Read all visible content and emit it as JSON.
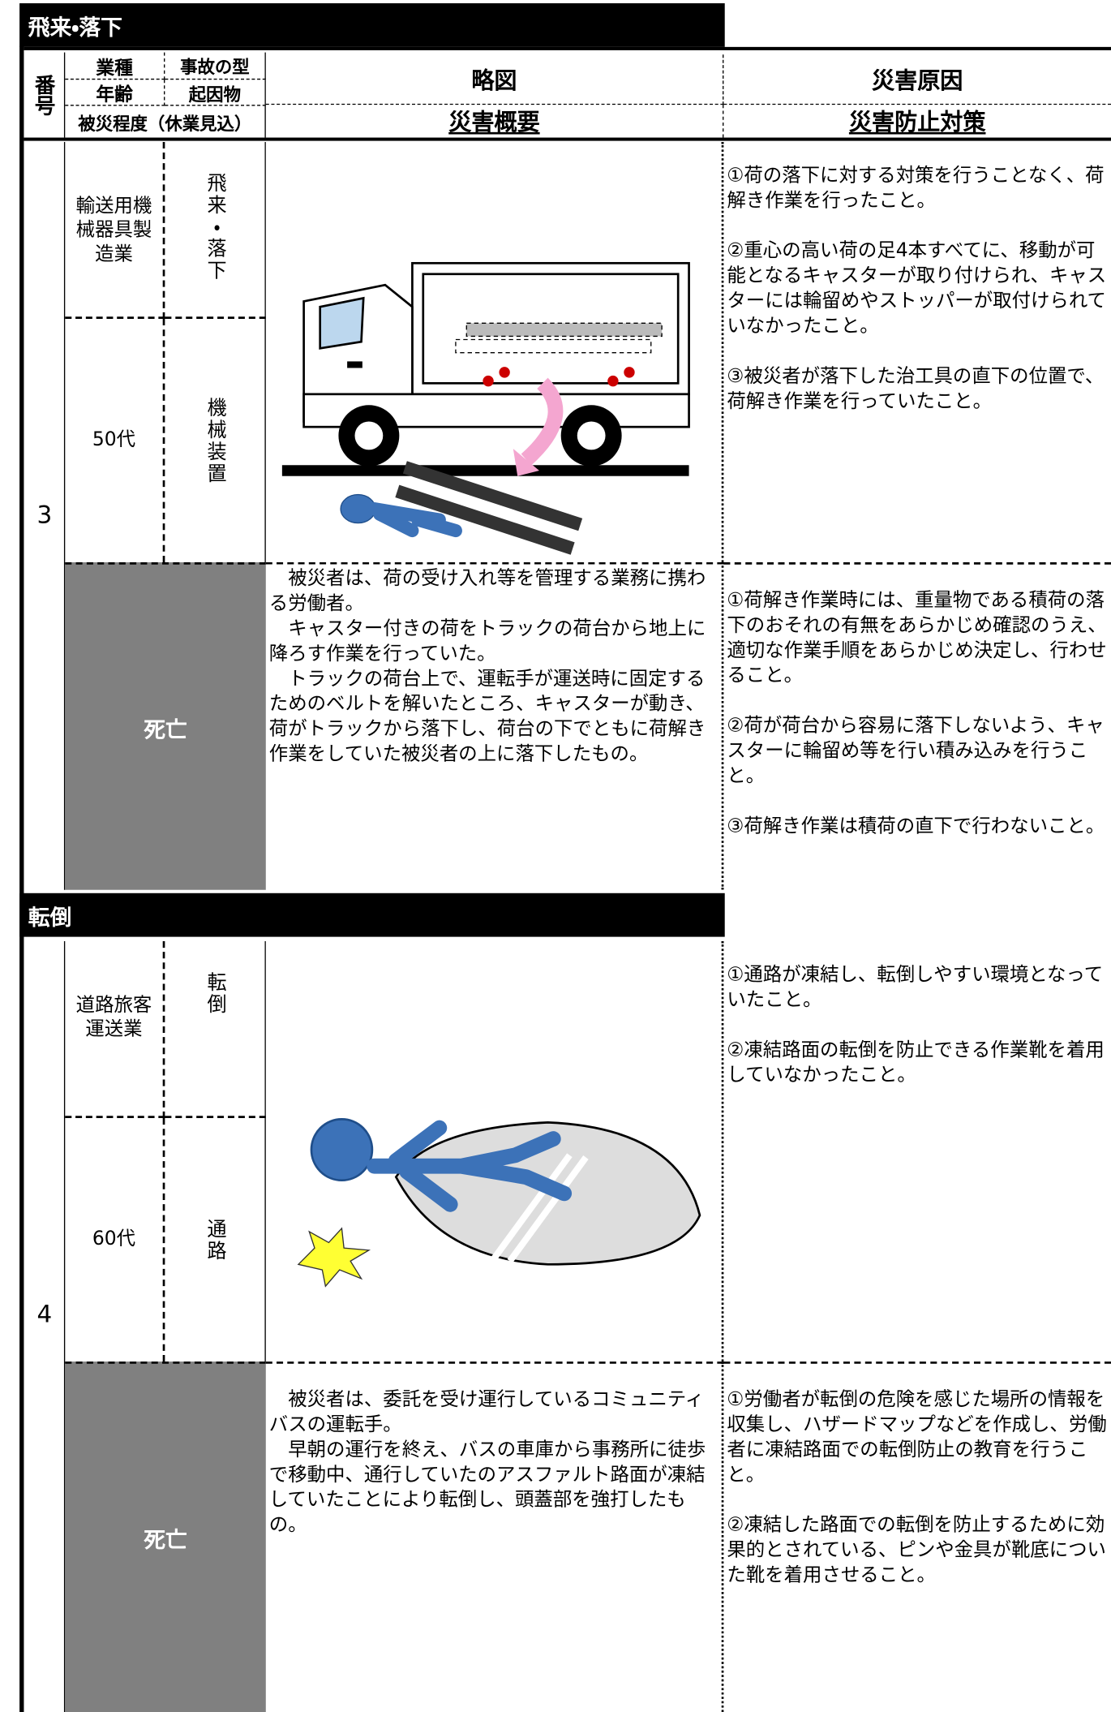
{
  "header": {
    "number": "番号",
    "industry": "業種",
    "accident_type": "事故の型",
    "age": "年齢",
    "cause_object": "起因物",
    "severity": "被災程度（休業見込）",
    "diagram": "略図",
    "summary": "災害概要",
    "cause": "災害原因",
    "prevention": "災害防止対策"
  },
  "sections": [
    {
      "title": "飛来・落下",
      "case": {
        "number": "3",
        "industry": "輸送用機械器具製造業",
        "accident_type": "飛来・落下",
        "age": "50代",
        "cause_object": "機械装置",
        "severity": "死亡",
        "summary": [
          "被災者は、荷の受け入れ等を管理する業務に携わる労働者。",
          "キャスター付きの荷をトラックの荷台から地上に降ろす作業を行っていた。",
          "トラックの荷台上で、運転手が運送時に固定するためのベルトを解いたところ、キャスターが動き、荷がトラックから落下し、荷台の下でともに荷解き作業をしていた被災者の上に落下したもの。"
        ],
        "causes": [
          "①荷の落下に対する対策を行うことなく、荷解き作業を行ったこと。",
          "②重心の高い荷の足4本すべてに、移動が可能となるキャスターが取り付けられ、キャスターには輪留めやストッパーが取付けられていなかったこと。",
          "③被災者が落下した治工具の直下の位置で、荷解き作業を行っていたこと。"
        ],
        "preventions": [
          "①荷解き作業時には、重量物である積荷の落下のおそれの有無をあらかじめ確認のうえ、適切な作業手順をあらかじめ決定し、行わせること。",
          "②荷が荷台から容易に落下しないよう、キャスターに輪留め等を行い積み込みを行うこと。",
          "③荷解き作業は積荷の直下で行わないこと。"
        ]
      }
    },
    {
      "title": "転倒",
      "case": {
        "number": "4",
        "industry": "道路旅客運送業",
        "accident_type": "転倒",
        "age": "60代",
        "cause_object": "通路",
        "severity": "死亡",
        "summary": [
          "被災者は、委託を受け運行しているコミュニティバスの運転手。",
          "早朝の運行を終え、バスの車庫から事務所に徒歩で移動中、通行していたのアスファルト路面が凍結していたことにより転倒し、頭蓋部を強打したもの。"
        ],
        "causes": [
          "①通路が凍結し、転倒しやすい環境となっていたこと。",
          "②凍結路面の転倒を防止できる作業靴を着用していなかったこと。"
        ],
        "preventions": [
          "①労働者が転倒の危険を感じた場所の情報を収集し、ハザードマップなどを作成し、労働者に凍結路面での転倒防止の教育を行うこと。",
          "②凍結した路面での転倒を防止するために効果的とされている、ピンや金具が靴底についた靴を着用させること。"
        ]
      }
    }
  ]
}
